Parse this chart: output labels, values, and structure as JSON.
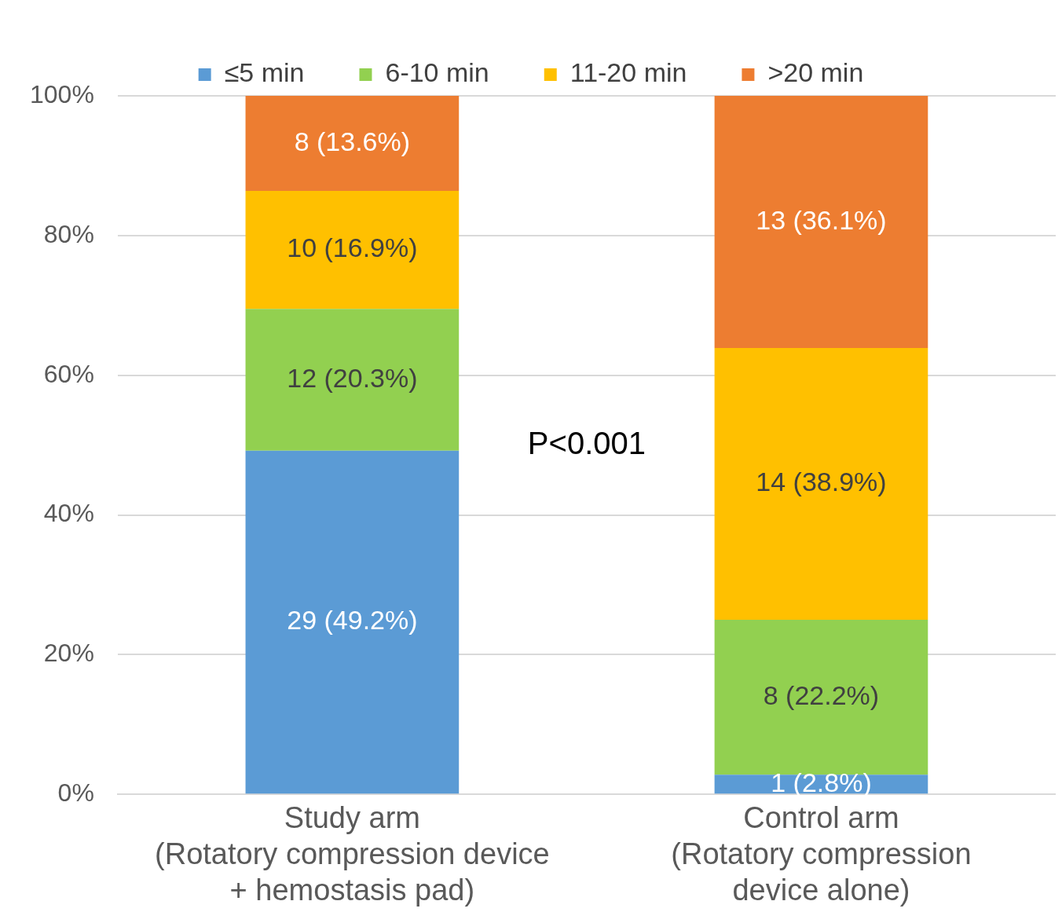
{
  "chart_data": {
    "type": "bar",
    "stacked": true,
    "categories": [
      "Study arm\n(Rotatory compression device\n+ hemostasis pad)",
      "Control arm\n(Rotatory compression\ndevice alone)"
    ],
    "series": [
      {
        "name": "≤5 min",
        "color": "#5b9bd5",
        "values": [
          49.2,
          2.8
        ],
        "value_labels": [
          "29 (49.2%)",
          "1 (2.8%)"
        ]
      },
      {
        "name": "6-10 min",
        "color": "#92d050",
        "values": [
          20.3,
          22.2
        ],
        "value_labels": [
          "12 (20.3%)",
          "8 (22.2%)"
        ]
      },
      {
        "name": "11-20 min",
        "color": "#ffc000",
        "values": [
          16.9,
          38.9
        ],
        "value_labels": [
          "10 (16.9%)",
          "14 (38.9%)"
        ]
      },
      {
        "name": ">20 min",
        "color": "#ed7d31",
        "values": [
          13.6,
          36.1
        ],
        "value_labels": [
          "8 (13.6%)",
          "13 (36.1%)"
        ]
      }
    ],
    "ylim": [
      0,
      100
    ],
    "yticks": [
      {
        "value": 0,
        "label": "0%"
      },
      {
        "value": 20,
        "label": "20%"
      },
      {
        "value": 40,
        "label": "40%"
      },
      {
        "value": 60,
        "label": "60%"
      },
      {
        "value": 80,
        "label": "80%"
      },
      {
        "value": 100,
        "label": "100%"
      }
    ],
    "grid": "y",
    "legend": "top",
    "annotations": [
      "P<0.001"
    ]
  }
}
